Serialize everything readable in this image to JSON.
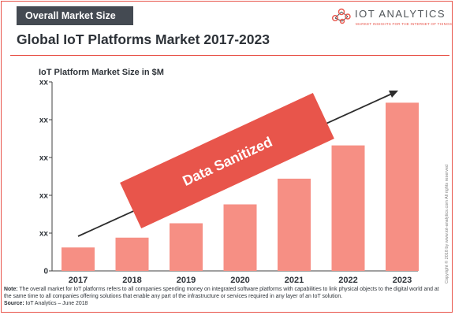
{
  "header": {
    "tag": "Overall Market Size",
    "title": "Global IoT Platforms Market 2017-2023"
  },
  "logo": {
    "name": "IOT ANALYTICS",
    "tagline": "MARKET INSIGHTS FOR THE INTERNET OF THINGS"
  },
  "copyright": "Copyright © 2018 by www.iot-analytics.com All rights reserved",
  "note": {
    "label": "Note:",
    "text": " The overall market for IoT platforms refers to all companies spending money on integrated software platforms with capabilities to link physical objects to the digital world and at the same time to all companies offering solutions that enable any part of the infrastructure or services required in any layer of an IoT solution.",
    "source_label": "Source:",
    "source_text": " IoT Analytics – June 2018"
  },
  "colors": {
    "accent": "#e8554b",
    "bar": "#f68f84",
    "banner": "#e8554b",
    "axis": "#404040"
  },
  "chart_data": {
    "type": "bar",
    "title": "IoT Platform  Market  Size in $M",
    "categories": [
      "2017",
      "2018",
      "2019",
      "2020",
      "2021",
      "2022",
      "2023"
    ],
    "values": [
      0.62,
      0.88,
      1.26,
      1.76,
      2.44,
      3.32,
      4.45
    ],
    "ylim": [
      0,
      5
    ],
    "yticks": [
      "0",
      "xx",
      "xx",
      "xx",
      "xx",
      "xx"
    ],
    "yaxis_values_hidden": true,
    "trend_arrow": true,
    "overlay_label": "Data Sanitized",
    "grid": false
  }
}
